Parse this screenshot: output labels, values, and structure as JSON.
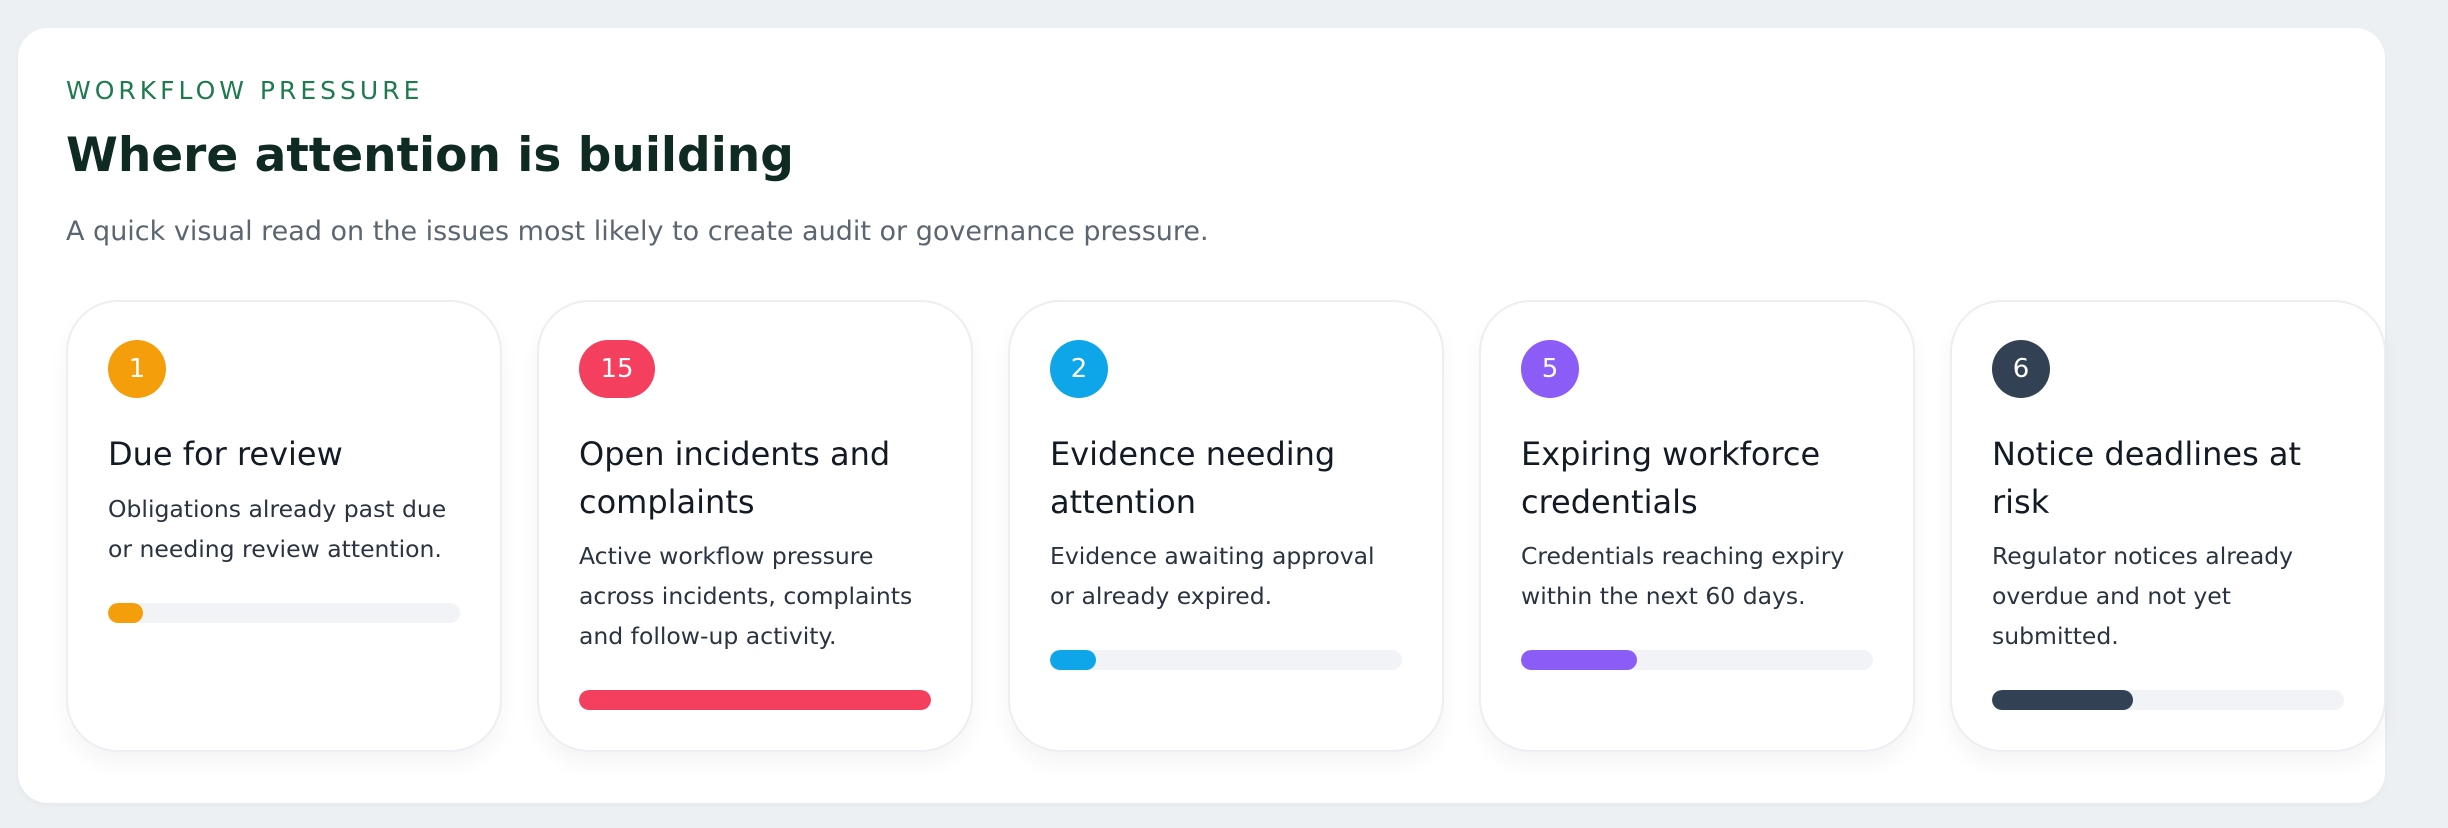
{
  "section": {
    "eyebrow": "WORKFLOW PRESSURE",
    "title": "Where attention is building",
    "subtitle": "A quick visual read on the issues most likely to create audit or governance pressure."
  },
  "cards": [
    {
      "count": "1",
      "title": "Due for review",
      "description": "Obligations already past due or needing review attention.",
      "color": "#f59e0b",
      "progress": 0.1
    },
    {
      "count": "15",
      "title": "Open incidents and complaints",
      "description": "Active workflow pressure across incidents, complaints and follow-up activity.",
      "color": "#f43f5e",
      "progress": 1.0
    },
    {
      "count": "2",
      "title": "Evidence needing attention",
      "description": "Evidence awaiting approval or already expired.",
      "color": "#0ea5e9",
      "progress": 0.13
    },
    {
      "count": "5",
      "title": "Expiring workforce credentials",
      "description": "Credentials reaching expiry within the next 60 days.",
      "color": "#8b5cf6",
      "progress": 0.33
    },
    {
      "count": "6",
      "title": "Notice deadlines at risk",
      "description": "Regulator notices already overdue and not yet submitted.",
      "color": "#334155",
      "progress": 0.4
    }
  ]
}
